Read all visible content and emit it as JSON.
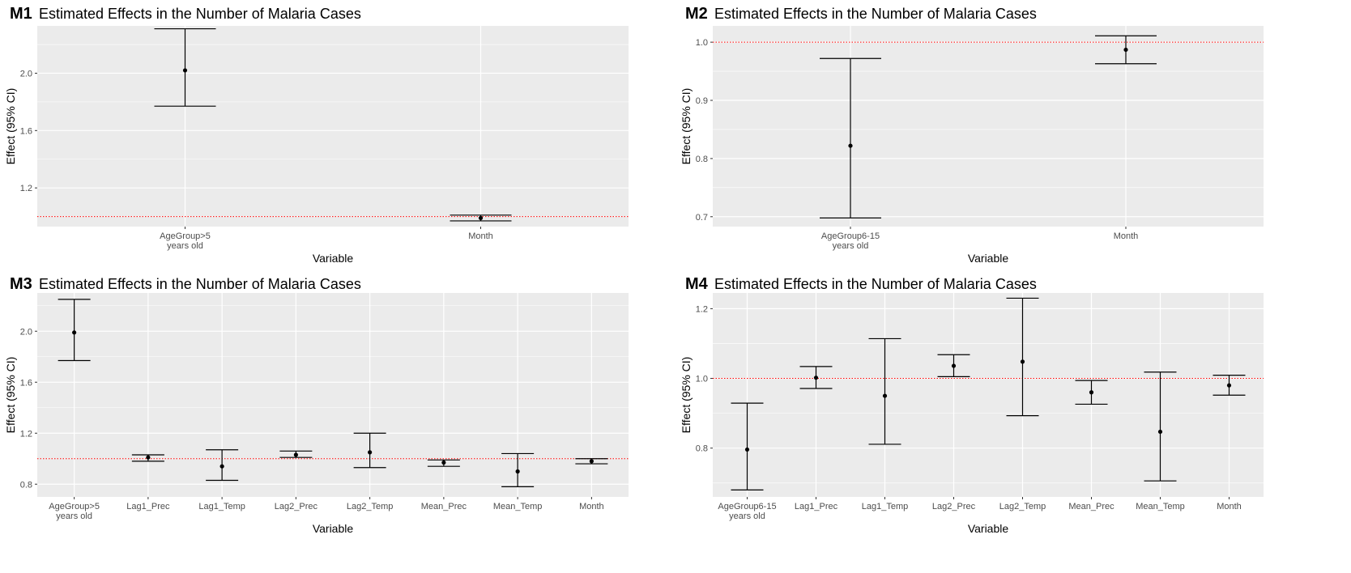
{
  "chart_data": [
    {
      "type": "errorbar",
      "tag": "M1",
      "title": "Estimated Effects in the Number of Malaria Cases",
      "xlabel": "Variable",
      "ylabel": "Effect (95% CI)",
      "ylim": [
        0.93,
        2.33
      ],
      "yticks": [
        1.2,
        1.6,
        2.0
      ],
      "ytick_labels": [
        "1.2",
        "1.6",
        "2.0"
      ],
      "categories": [
        "AgeGroup>5\nyears old",
        "Month"
      ],
      "estimate": [
        2.02,
        0.99
      ],
      "lower": [
        1.77,
        0.97
      ],
      "upper": [
        2.31,
        1.01
      ],
      "reference_line": 1.0,
      "reference_color": "#ff0000",
      "panel_bg": "#ebebeb",
      "grid_color": "#ffffff"
    },
    {
      "type": "errorbar",
      "tag": "M2",
      "title": "Estimated Effects in the Number of Malaria Cases",
      "xlabel": "Variable",
      "ylabel": "Effect (95% CI)",
      "ylim": [
        0.683,
        1.028
      ],
      "yticks": [
        0.7,
        0.8,
        0.9,
        1.0
      ],
      "ytick_labels": [
        "0.7",
        "0.8",
        "0.9",
        "1.0"
      ],
      "categories": [
        "AgeGroup6-15\nyears old",
        "Month"
      ],
      "estimate": [
        0.822,
        0.987
      ],
      "lower": [
        0.698,
        0.963
      ],
      "upper": [
        0.972,
        1.011
      ],
      "reference_line": 1.0,
      "reference_color": "#ff0000",
      "panel_bg": "#ebebeb",
      "grid_color": "#ffffff"
    },
    {
      "type": "errorbar",
      "tag": "M3",
      "title": "Estimated Effects in the Number of Malaria Cases",
      "xlabel": "Variable",
      "ylabel": "Effect (95% CI)",
      "ylim": [
        0.7,
        2.3
      ],
      "yticks": [
        0.8,
        1.2,
        1.6,
        2.0
      ],
      "ytick_labels": [
        "0.8",
        "1.2",
        "1.6",
        "2.0"
      ],
      "categories": [
        "AgeGroup>5\nyears old",
        "Lag1_Prec",
        "Lag1_Temp",
        "Lag2_Prec",
        "Lag2_Temp",
        "Mean_Prec",
        "Mean_Temp",
        "Month"
      ],
      "estimate": [
        1.99,
        1.01,
        0.94,
        1.03,
        1.05,
        0.97,
        0.9,
        0.98
      ],
      "lower": [
        1.77,
        0.98,
        0.83,
        1.01,
        0.93,
        0.94,
        0.78,
        0.96
      ],
      "upper": [
        2.25,
        1.03,
        1.07,
        1.06,
        1.2,
        0.99,
        1.04,
        1.0
      ],
      "reference_line": 1.0,
      "reference_color": "#ff0000",
      "panel_bg": "#ebebeb",
      "grid_color": "#ffffff"
    },
    {
      "type": "errorbar",
      "tag": "M4",
      "title": "Estimated Effects in the Number of Malaria Cases",
      "xlabel": "Variable",
      "ylabel": "Effect (95% CI)",
      "ylim": [
        0.66,
        1.245
      ],
      "yticks": [
        0.8,
        1.0,
        1.2
      ],
      "ytick_labels": [
        "0.8",
        "1.0",
        "1.2"
      ],
      "categories": [
        "AgeGroup6-15\nyears old",
        "Lag1_Prec",
        "Lag1_Temp",
        "Lag2_Prec",
        "Lag2_Temp",
        "Mean_Prec",
        "Mean_Temp",
        "Month"
      ],
      "estimate": [
        0.796,
        1.002,
        0.95,
        1.036,
        1.048,
        0.96,
        0.847,
        0.98
      ],
      "lower": [
        0.68,
        0.971,
        0.811,
        1.005,
        0.893,
        0.926,
        0.706,
        0.952
      ],
      "upper": [
        0.929,
        1.034,
        1.114,
        1.068,
        1.23,
        0.994,
        1.018,
        1.009
      ],
      "reference_line": 1.0,
      "reference_color": "#ff0000",
      "panel_bg": "#ebebeb",
      "grid_color": "#ffffff"
    }
  ]
}
